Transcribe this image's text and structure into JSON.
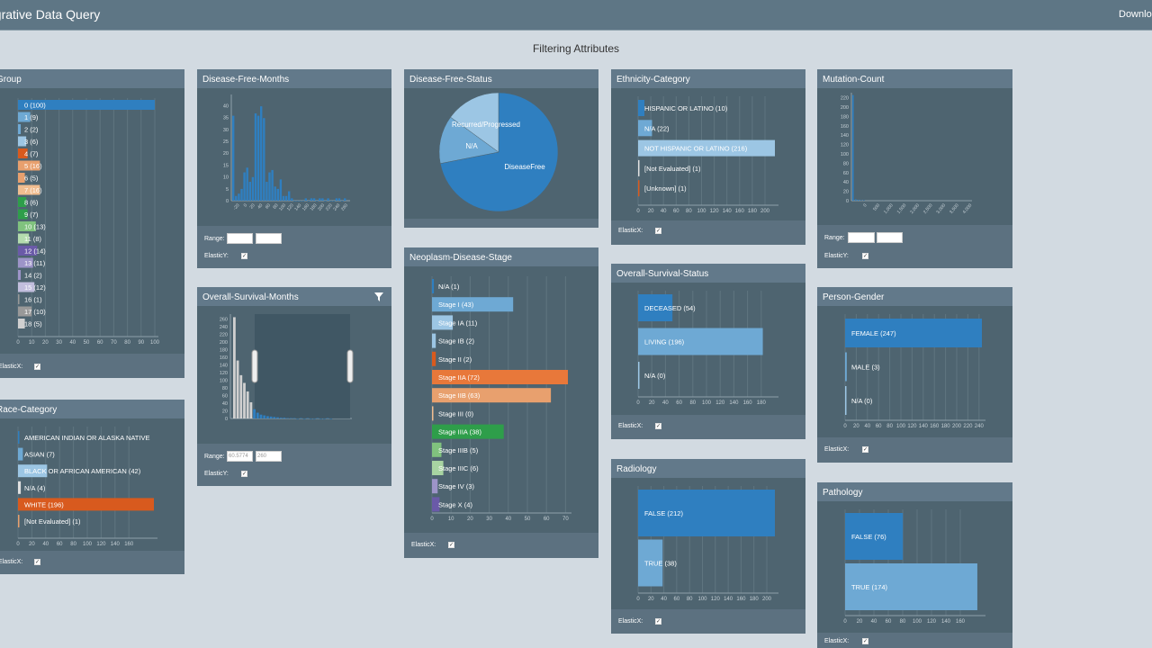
{
  "app": {
    "title": "egrative Data Query",
    "download": "Downloa",
    "section_title": "Filtering Attributes"
  },
  "colors": {
    "blue": "#2f7fc0",
    "light_blue": "#6ea9d4",
    "pale_blue": "#9cc6e4",
    "orange": "#d85a1e",
    "tan": "#e8a06e",
    "peach": "#f0bd90",
    "green": "#2e9e4a",
    "light_green": "#80c27e",
    "pale_green": "#b4dcae",
    "purple": "#6a5aa8",
    "lavender": "#9d94c8",
    "pale_lavender": "#c2bedd",
    "gray": "#999999",
    "light_gray": "#d0d0d0"
  },
  "footer_labels": {
    "elasticx": "ElasticX:",
    "elasticy": "ElasticY:",
    "range": "Range:",
    "check": "✓"
  },
  "panels": {
    "group": {
      "title": "Group"
    },
    "race": {
      "title": "Race-Category"
    },
    "dfm": {
      "title": "Disease-Free-Months",
      "range_from": "",
      "range_to": ""
    },
    "osm": {
      "title": "Overall-Survival-Months",
      "range_from": "60.5774",
      "range_to": "260"
    },
    "dfs": {
      "title": "Disease-Free-Status"
    },
    "neoplasm": {
      "title": "Neoplasm-Disease-Stage"
    },
    "ethnicity": {
      "title": "Ethnicity-Category"
    },
    "oss": {
      "title": "Overall-Survival-Status"
    },
    "radiology": {
      "title": "Radiology"
    },
    "mutation": {
      "title": "Mutation-Count",
      "range_from": "",
      "range_to": ""
    },
    "gender": {
      "title": "Person-Gender"
    },
    "pathology": {
      "title": "Pathology"
    }
  },
  "chart_data": [
    {
      "id": "group",
      "type": "bar",
      "orientation": "horizontal",
      "xlim": [
        0,
        100
      ],
      "x_ticks": [
        "0",
        "10",
        "20",
        "30",
        "40",
        "50",
        "60",
        "70",
        "80",
        "90",
        "100"
      ],
      "categories": [
        "0 (100)",
        "1 (9)",
        "2 (2)",
        "3 (6)",
        "4 (7)",
        "5 (16)",
        "6 (5)",
        "7 (16)",
        "8 (6)",
        "9 (7)",
        "10 (13)",
        "11 (8)",
        "12 (14)",
        "13 (11)",
        "14 (2)",
        "15 (12)",
        "16 (1)",
        "17 (10)",
        "18 (5)"
      ],
      "values": [
        100,
        9,
        2,
        6,
        7,
        16,
        5,
        16,
        6,
        7,
        13,
        8,
        14,
        11,
        2,
        12,
        1,
        10,
        5
      ],
      "colors": [
        "#2f7fc0",
        "#6ea9d4",
        "#6ea9d4",
        "#9cc6e4",
        "#d85a1e",
        "#e8a06e",
        "#e8a06e",
        "#f0bd90",
        "#2e9e4a",
        "#2e9e4a",
        "#80c27e",
        "#b4dcae",
        "#6a5aa8",
        "#9d94c8",
        "#9d94c8",
        "#c2bedd",
        "#999999",
        "#999999",
        "#d0d0d0"
      ]
    },
    {
      "id": "race",
      "type": "bar",
      "orientation": "horizontal",
      "xlim": [
        0,
        196
      ],
      "x_ticks": [
        "0",
        "20",
        "40",
        "60",
        "80",
        "100",
        "120",
        "140",
        "160"
      ],
      "categories": [
        "AMERICAN INDIAN OR ALASKA NATIVE",
        "ASIAN (7)",
        "BLACK OR AFRICAN AMERICAN (42)",
        "N/A (4)",
        "WHITE (196)",
        "[Not Evaluated] (1)"
      ],
      "values": [
        0,
        7,
        42,
        4,
        196,
        1
      ],
      "colors": [
        "#2f7fc0",
        "#6ea9d4",
        "#9cc6e4",
        "#e0e0e0",
        "#d85a1e",
        "#e8a06e"
      ]
    },
    {
      "id": "dfm",
      "type": "bar",
      "orientation": "vertical",
      "ylim": [
        0,
        45
      ],
      "y_ticks": [
        "0",
        "5",
        "10",
        "15",
        "20",
        "25",
        "30",
        "35",
        "40"
      ],
      "x_ticks": [
        "-20",
        "0",
        "20",
        "40",
        "60",
        "80",
        "100",
        "120",
        "140",
        "160",
        "180",
        "200",
        "220",
        "240",
        "260"
      ],
      "values": [
        36,
        2,
        3,
        5,
        12,
        14,
        8,
        10,
        37,
        36,
        40,
        35,
        8,
        12,
        13,
        6,
        5,
        9,
        2,
        2,
        4,
        1,
        0,
        0,
        0,
        0,
        1,
        0,
        1,
        1,
        0,
        1,
        1,
        0,
        1,
        0,
        0,
        1,
        1,
        0,
        1
      ]
    },
    {
      "id": "osm",
      "type": "bar",
      "orientation": "vertical",
      "ylim": [
        0,
        270
      ],
      "y_ticks": [
        "0",
        "20",
        "40",
        "60",
        "80",
        "100",
        "120",
        "140",
        "160",
        "180",
        "200",
        "220",
        "240",
        "260"
      ],
      "values": [
        262,
        150,
        112,
        92,
        70,
        42,
        24,
        15,
        10,
        8,
        6,
        5,
        4,
        3,
        2,
        2,
        1,
        1,
        1,
        0,
        1,
        0,
        1,
        0,
        0,
        1,
        0,
        0,
        1,
        0
      ],
      "brush": [
        60.5774,
        260
      ]
    },
    {
      "id": "dfs",
      "type": "pie",
      "labels": [
        "DiseaseFree",
        "N/A",
        "Recurred/Progressed"
      ],
      "values": [
        187,
        34,
        39
      ],
      "colors": [
        "#2f7fc0",
        "#6ea9d4",
        "#9cc6e4"
      ]
    },
    {
      "id": "neoplasm",
      "type": "bar",
      "orientation": "horizontal",
      "xlim": [
        0,
        72
      ],
      "x_ticks": [
        "0",
        "10",
        "20",
        "30",
        "40",
        "50",
        "60",
        "70"
      ],
      "categories": [
        "N/A (1)",
        "Stage I (43)",
        "Stage IA (11)",
        "Stage IB (2)",
        "Stage II (2)",
        "Stage IIA (72)",
        "Stage IIB (63)",
        "Stage III (0)",
        "Stage IIIA (38)",
        "Stage IIIB (5)",
        "Stage IIIC (6)",
        "Stage IV (3)",
        "Stage X (4)"
      ],
      "values": [
        1,
        43,
        11,
        2,
        2,
        72,
        63,
        0,
        38,
        5,
        6,
        3,
        4
      ],
      "colors": [
        "#2f7fc0",
        "#6ea9d4",
        "#9cc6e4",
        "#9cc6e4",
        "#d85a1e",
        "#e8783a",
        "#e8a06e",
        "#f0bd90",
        "#2e9e4a",
        "#80c27e",
        "#a8d4a2",
        "#9d94c8",
        "#6a5aa8"
      ]
    },
    {
      "id": "ethnicity",
      "type": "bar",
      "orientation": "horizontal",
      "xlim": [
        0,
        216
      ],
      "x_ticks": [
        "0",
        "20",
        "40",
        "60",
        "80",
        "100",
        "120",
        "140",
        "160",
        "180",
        "200"
      ],
      "categories": [
        "HISPANIC OR LATINO (10)",
        "N/A (22)",
        "NOT HISPANIC OR LATINO (216)",
        "[Not Evaluated] (1)",
        "[Unknown] (1)"
      ],
      "values": [
        10,
        22,
        216,
        1,
        1
      ],
      "colors": [
        "#2f7fc0",
        "#6ea9d4",
        "#9cc6e4",
        "#e0e0e0",
        "#d85a1e"
      ]
    },
    {
      "id": "oss",
      "type": "bar",
      "orientation": "horizontal",
      "xlim": [
        0,
        215
      ],
      "x_ticks": [
        "0",
        "20",
        "40",
        "60",
        "80",
        "100",
        "120",
        "140",
        "160",
        "180"
      ],
      "categories": [
        "DECEASED (54)",
        "LIVING (196)",
        "N/A (0)"
      ],
      "values": [
        54,
        196,
        0
      ],
      "colors": [
        "#2f7fc0",
        "#6ea9d4",
        "#9cc6e4"
      ]
    },
    {
      "id": "radiology",
      "type": "bar",
      "orientation": "horizontal",
      "xlim": [
        0,
        212
      ],
      "x_ticks": [
        "0",
        "20",
        "40",
        "60",
        "80",
        "100",
        "120",
        "140",
        "160",
        "180",
        "200"
      ],
      "categories": [
        "FALSE (212)",
        "TRUE (38)"
      ],
      "values": [
        212,
        38
      ],
      "colors": [
        "#2f7fc0",
        "#6ea9d4"
      ]
    },
    {
      "id": "mutation",
      "type": "bar",
      "orientation": "vertical",
      "ylim": [
        0,
        230
      ],
      "y_ticks": [
        "0",
        "20",
        "40",
        "60",
        "80",
        "100",
        "120",
        "140",
        "160",
        "180",
        "200",
        "220"
      ],
      "x_ticks": [
        "0",
        "500",
        "1,000",
        "1,500",
        "2,000",
        "2,500",
        "3,000",
        "3,500",
        "4,000"
      ],
      "values": [
        225,
        3,
        2,
        1,
        1
      ]
    },
    {
      "id": "gender",
      "type": "bar",
      "orientation": "horizontal",
      "xlim": [
        0,
        247
      ],
      "x_ticks": [
        "0",
        "20",
        "40",
        "60",
        "80",
        "100",
        "120",
        "140",
        "160",
        "180",
        "200",
        "220",
        "240"
      ],
      "categories": [
        "FEMALE (247)",
        "MALE (3)",
        "N/A (0)"
      ],
      "values": [
        247,
        3,
        0
      ],
      "colors": [
        "#2f7fc0",
        "#6ea9d4",
        "#9cc6e4"
      ]
    },
    {
      "id": "pathology",
      "type": "bar",
      "orientation": "horizontal",
      "xlim": [
        0,
        180
      ],
      "x_ticks": [
        "0",
        "20",
        "40",
        "60",
        "80",
        "100",
        "120",
        "140",
        "160"
      ],
      "categories": [
        "FALSE (76)",
        "TRUE (174)"
      ],
      "values": [
        76,
        174
      ],
      "colors": [
        "#2f7fc0",
        "#6ea9d4"
      ]
    }
  ]
}
